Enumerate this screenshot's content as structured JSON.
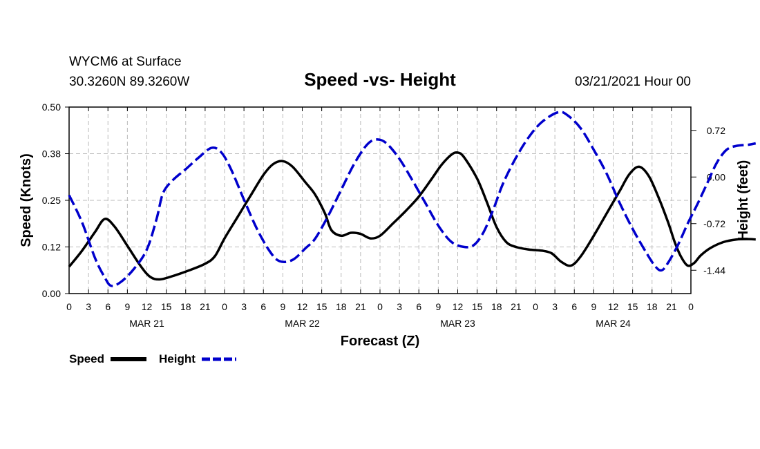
{
  "header": {
    "station_line1": "WYCM6 at Surface",
    "station_line2": "30.3260N 89.3260W",
    "date": "03/21/2021 Hour 00"
  },
  "chart_data": {
    "type": "line",
    "title": "Speed -vs- Height",
    "xlabel": "Forecast (Z)",
    "ylabel_left": "Speed (Knots)",
    "ylabel_right": "Height (feet)",
    "x_range_hours": [
      0,
      96
    ],
    "ylim_left": [
      0.0,
      0.5
    ],
    "ylim_right": [
      -1.8,
      1.08
    ],
    "left_ticks": [
      "0.00",
      "0.12",
      "0.25",
      "0.38",
      "0.50"
    ],
    "left_tick_values": [
      0.0,
      0.125,
      0.25,
      0.375,
      0.5
    ],
    "right_ticks": [
      "0.72",
      "0.00",
      "-0.72",
      "-1.44"
    ],
    "right_tick_values": [
      0.72,
      0.0,
      -0.72,
      -1.44
    ],
    "x_ticks": [
      "0",
      "3",
      "6",
      "9",
      "12",
      "15",
      "18",
      "21",
      "0",
      "3",
      "6",
      "9",
      "12",
      "15",
      "18",
      "21",
      "0",
      "3",
      "6",
      "9",
      "12",
      "15",
      "18",
      "21",
      "0",
      "3",
      "6",
      "9",
      "12",
      "15",
      "18",
      "21",
      "0"
    ],
    "day_labels": [
      {
        "label": "MAR 21",
        "hour": 12
      },
      {
        "label": "MAR 22",
        "hour": 36
      },
      {
        "label": "MAR 23",
        "hour": 60
      },
      {
        "label": "MAR 24",
        "hour": 84
      }
    ],
    "grid": true,
    "legend": [
      {
        "name": "Speed",
        "color": "#000000",
        "style": "solid"
      },
      {
        "name": "Height",
        "color": "#0000cc",
        "style": "dashed"
      }
    ],
    "series": [
      {
        "name": "Speed",
        "axis": "left",
        "color": "#000000",
        "points": [
          [
            0,
            0.072
          ],
          [
            2,
            0.115
          ],
          [
            4,
            0.165
          ],
          [
            5.5,
            0.2
          ],
          [
            7,
            0.18
          ],
          [
            9,
            0.128
          ],
          [
            11,
            0.075
          ],
          [
            12.5,
            0.045
          ],
          [
            14,
            0.038
          ],
          [
            16,
            0.047
          ],
          [
            18.5,
            0.062
          ],
          [
            21,
            0.08
          ],
          [
            22.5,
            0.1
          ],
          [
            24,
            0.148
          ],
          [
            26,
            0.205
          ],
          [
            28,
            0.262
          ],
          [
            30,
            0.318
          ],
          [
            31.5,
            0.347
          ],
          [
            33,
            0.355
          ],
          [
            34.5,
            0.34
          ],
          [
            36.5,
            0.298
          ],
          [
            38,
            0.265
          ],
          [
            39.5,
            0.215
          ],
          [
            40.5,
            0.17
          ],
          [
            42,
            0.155
          ],
          [
            43.5,
            0.163
          ],
          [
            45,
            0.16
          ],
          [
            46.5,
            0.148
          ],
          [
            48,
            0.155
          ],
          [
            50,
            0.188
          ],
          [
            52,
            0.222
          ],
          [
            54,
            0.26
          ],
          [
            56,
            0.308
          ],
          [
            57.5,
            0.345
          ],
          [
            59,
            0.372
          ],
          [
            60,
            0.378
          ],
          [
            61,
            0.365
          ],
          [
            63,
            0.308
          ],
          [
            64.5,
            0.245
          ],
          [
            66,
            0.178
          ],
          [
            67.5,
            0.138
          ],
          [
            69,
            0.125
          ],
          [
            71,
            0.118
          ],
          [
            73,
            0.115
          ],
          [
            74.5,
            0.108
          ],
          [
            76,
            0.085
          ],
          [
            77.5,
            0.075
          ],
          [
            79,
            0.1
          ],
          [
            81,
            0.155
          ],
          [
            83,
            0.215
          ],
          [
            85,
            0.275
          ],
          [
            86.5,
            0.32
          ],
          [
            88,
            0.34
          ],
          [
            89.5,
            0.315
          ],
          [
            91,
            0.258
          ],
          [
            92.5,
            0.19
          ],
          [
            93.5,
            0.138
          ],
          [
            94.5,
            0.098
          ],
          [
            95.5,
            0.075
          ],
          [
            96.5,
            0.082
          ],
          [
            97.5,
            0.102
          ],
          [
            99,
            0.122
          ],
          [
            101,
            0.138
          ],
          [
            103,
            0.145
          ],
          [
            105,
            0.146
          ],
          [
            106,
            0.145
          ]
        ]
      },
      {
        "name": "Height",
        "axis": "right",
        "color": "#0000cc",
        "points": [
          [
            0,
            -0.28
          ],
          [
            2,
            -0.7
          ],
          [
            4,
            -1.25
          ],
          [
            5.5,
            -1.55
          ],
          [
            6.5,
            -1.68
          ],
          [
            8,
            -1.62
          ],
          [
            10,
            -1.42
          ],
          [
            12,
            -1.12
          ],
          [
            13.5,
            -0.65
          ],
          [
            14.5,
            -0.25
          ],
          [
            16,
            -0.05
          ],
          [
            18,
            0.12
          ],
          [
            20,
            0.3
          ],
          [
            22,
            0.45
          ],
          [
            23.5,
            0.38
          ],
          [
            25,
            0.12
          ],
          [
            27,
            -0.35
          ],
          [
            29,
            -0.8
          ],
          [
            31,
            -1.15
          ],
          [
            32.5,
            -1.3
          ],
          [
            34.5,
            -1.28
          ],
          [
            36.5,
            -1.1
          ],
          [
            38,
            -0.95
          ],
          [
            40,
            -0.6
          ],
          [
            42,
            -0.2
          ],
          [
            44,
            0.2
          ],
          [
            46,
            0.5
          ],
          [
            47.5,
            0.58
          ],
          [
            49,
            0.52
          ],
          [
            51,
            0.28
          ],
          [
            53,
            -0.05
          ],
          [
            55,
            -0.4
          ],
          [
            57,
            -0.75
          ],
          [
            59,
            -1.0
          ],
          [
            61,
            -1.08
          ],
          [
            62.5,
            -1.05
          ],
          [
            64,
            -0.85
          ],
          [
            65.5,
            -0.5
          ],
          [
            67,
            -0.1
          ],
          [
            69,
            0.3
          ],
          [
            71,
            0.62
          ],
          [
            73,
            0.85
          ],
          [
            75.5,
            1.0
          ],
          [
            77,
            0.95
          ],
          [
            79,
            0.75
          ],
          [
            81,
            0.42
          ],
          [
            83,
            0.05
          ],
          [
            85,
            -0.4
          ],
          [
            87,
            -0.8
          ],
          [
            89,
            -1.15
          ],
          [
            90.5,
            -1.38
          ],
          [
            91.5,
            -1.44
          ],
          [
            92.5,
            -1.32
          ],
          [
            94,
            -1.05
          ],
          [
            95.5,
            -0.72
          ],
          [
            97,
            -0.42
          ],
          [
            98.5,
            -0.1
          ],
          [
            100,
            0.22
          ],
          [
            101.5,
            0.42
          ],
          [
            103,
            0.48
          ],
          [
            105,
            0.5
          ],
          [
            106,
            0.52
          ]
        ]
      }
    ]
  }
}
